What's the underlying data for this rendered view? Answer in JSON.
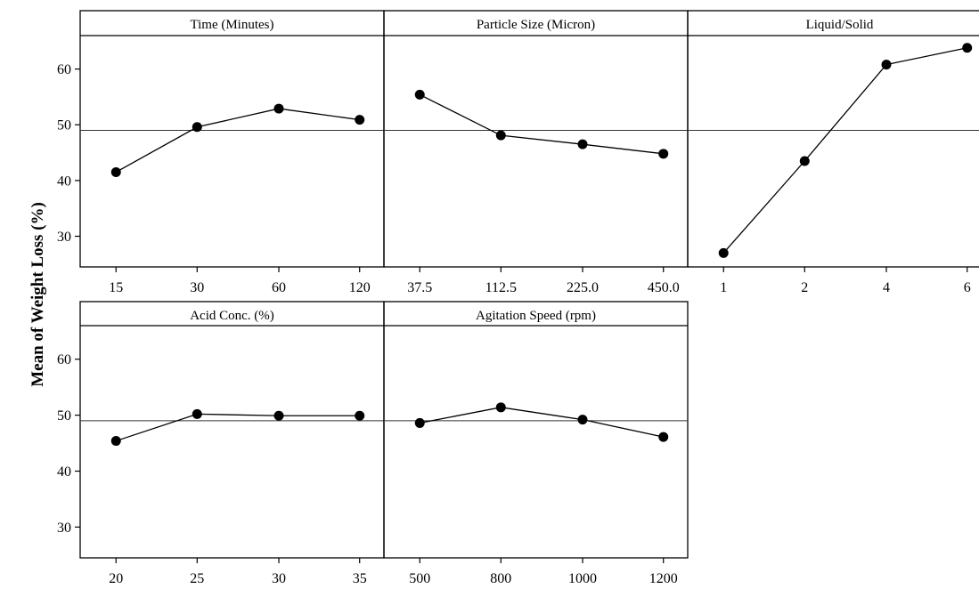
{
  "chart_data": {
    "type": "line",
    "ylabel": "Mean of Weight Loss (%)",
    "ylim": [
      24.5,
      66
    ],
    "yticks": [
      30,
      40,
      50,
      60
    ],
    "reference_line": 49,
    "colors": {
      "line": "#000000",
      "marker": "#000000",
      "frame": "#000000"
    },
    "panels": [
      {
        "title": "Time (Minutes)",
        "categories": [
          "15",
          "30",
          "60",
          "120"
        ],
        "values": [
          41.5,
          49.6,
          52.9,
          50.9
        ]
      },
      {
        "title": "Particle Size (Micron)",
        "categories": [
          "37.5",
          "112.5",
          "225.0",
          "450.0"
        ],
        "values": [
          55.4,
          48.1,
          46.5,
          44.8
        ]
      },
      {
        "title": "Liquid/Solid",
        "categories": [
          "1",
          "2",
          "4",
          "6"
        ],
        "values": [
          27.0,
          43.5,
          60.8,
          63.8
        ]
      },
      {
        "title": "Acid Conc. (%)",
        "categories": [
          "20",
          "25",
          "30",
          "35"
        ],
        "values": [
          45.4,
          50.2,
          49.9,
          49.9
        ]
      },
      {
        "title": "Agitation Speed (rpm)",
        "categories": [
          "500",
          "800",
          "1000",
          "1200"
        ],
        "values": [
          48.6,
          51.4,
          49.2,
          46.1
        ]
      }
    ]
  }
}
